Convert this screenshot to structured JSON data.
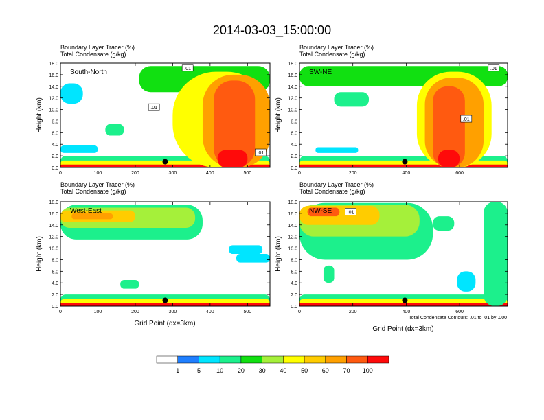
{
  "figure": {
    "main_title": "2014-03-03_15:00:00",
    "header_line1": "Boundary Layer Tracer    (%)",
    "header_line2": "Total Condensate    (g/kg)",
    "ylabel": "Height (km)",
    "xlabel": "Grid Point (dx=3km)",
    "contour_note": "Total Condensate Contours: .01 to .01 by .000",
    "contour_label": ".01"
  },
  "colorbar": {
    "colors": [
      "#ffffff",
      "#1f7fff",
      "#00e5ff",
      "#1cf08c",
      "#11e011",
      "#a5f03a",
      "#ffff00",
      "#ffcc00",
      "#ffa000",
      "#ff5a10",
      "#ff0a0a"
    ],
    "labels": [
      "1",
      "5",
      "10",
      "20",
      "30",
      "40",
      "50",
      "60",
      "70",
      "100"
    ]
  },
  "chart_data": [
    {
      "type": "heatmap",
      "panel": "South-North",
      "title": "South-North",
      "xlim": [
        0,
        560
      ],
      "ylim": [
        0,
        18
      ],
      "x_ticks": [
        0,
        100,
        200,
        300,
        400,
        500
      ],
      "y_ticks": [
        "0.0",
        "2.0",
        "4.0",
        "6.0",
        "8.0",
        "10.0",
        "12.0",
        "14.0",
        "16.0",
        "18.0"
      ],
      "marker": {
        "x": 280,
        "y": 1.0
      },
      "contour_labels": [
        {
          "x": 340,
          "y": 17.2
        },
        {
          "x": 250,
          "y": 10.4
        },
        {
          "x": 535,
          "y": 2.6
        }
      ],
      "regions": [
        {
          "level": 3,
          "x": [
            0,
            560
          ],
          "y": [
            0.0,
            2.0
          ]
        },
        {
          "level": 6,
          "x": [
            0,
            560
          ],
          "y": [
            0.0,
            1.2
          ]
        },
        {
          "level": 10,
          "x": [
            0,
            560
          ],
          "y": [
            0.0,
            0.5
          ]
        },
        {
          "level": 4,
          "x": [
            210,
            560
          ],
          "y": [
            13.0,
            17.5
          ]
        },
        {
          "level": 6,
          "x": [
            300,
            560
          ],
          "y": [
            0.0,
            16.5
          ]
        },
        {
          "level": 8,
          "x": [
            380,
            560
          ],
          "y": [
            0.0,
            16.0
          ]
        },
        {
          "level": 9,
          "x": [
            410,
            520
          ],
          "y": [
            0.0,
            15.0
          ]
        },
        {
          "level": 10,
          "x": [
            420,
            500
          ],
          "y": [
            0.0,
            3.0
          ]
        },
        {
          "level": 2,
          "x": [
            0,
            60
          ],
          "y": [
            11.0,
            14.5
          ]
        },
        {
          "level": 3,
          "x": [
            120,
            170
          ],
          "y": [
            5.5,
            7.5
          ]
        },
        {
          "level": 2,
          "x": [
            0,
            100
          ],
          "y": [
            2.5,
            3.8
          ]
        }
      ]
    },
    {
      "type": "heatmap",
      "panel": "SW-NE",
      "title": "SW-NE",
      "xlim": [
        0,
        780
      ],
      "ylim": [
        0,
        18
      ],
      "x_ticks": [
        0,
        200,
        400,
        600
      ],
      "y_ticks": [
        "0.0",
        "2.0",
        "4.0",
        "6.0",
        "8.0",
        "10.0",
        "12.0",
        "14.0",
        "16.0",
        "18.0"
      ],
      "marker": {
        "x": 395,
        "y": 1.0
      },
      "contour_labels": [
        {
          "x": 728,
          "y": 17.2
        },
        {
          "x": 625,
          "y": 8.4
        }
      ],
      "regions": [
        {
          "level": 3,
          "x": [
            0,
            780
          ],
          "y": [
            0.0,
            2.0
          ]
        },
        {
          "level": 6,
          "x": [
            0,
            780
          ],
          "y": [
            0.0,
            1.2
          ]
        },
        {
          "level": 10,
          "x": [
            0,
            780
          ],
          "y": [
            0.0,
            0.5
          ]
        },
        {
          "level": 4,
          "x": [
            0,
            780
          ],
          "y": [
            14.0,
            17.5
          ]
        },
        {
          "level": 3,
          "x": [
            130,
            260
          ],
          "y": [
            10.5,
            13.0
          ]
        },
        {
          "level": 6,
          "x": [
            440,
            720
          ],
          "y": [
            0.0,
            16.5
          ]
        },
        {
          "level": 8,
          "x": [
            470,
            690
          ],
          "y": [
            0.0,
            15.5
          ]
        },
        {
          "level": 9,
          "x": [
            500,
            620
          ],
          "y": [
            0.0,
            14.0
          ]
        },
        {
          "level": 10,
          "x": [
            520,
            600
          ],
          "y": [
            0.0,
            3.0
          ]
        },
        {
          "level": 2,
          "x": [
            60,
            220
          ],
          "y": [
            2.5,
            3.5
          ]
        }
      ]
    },
    {
      "type": "heatmap",
      "panel": "West-East",
      "title": "West-East",
      "xlim": [
        0,
        560
      ],
      "ylim": [
        0,
        18
      ],
      "x_ticks": [
        0,
        100,
        200,
        300,
        400,
        500
      ],
      "y_ticks": [
        "0.0",
        "2.0",
        "4.0",
        "6.0",
        "8.0",
        "10.0",
        "12.0",
        "14.0",
        "16.0",
        "18.0"
      ],
      "marker": {
        "x": 280,
        "y": 1.0
      },
      "contour_labels": [],
      "regions": [
        {
          "level": 3,
          "x": [
            0,
            560
          ],
          "y": [
            0.0,
            2.0
          ]
        },
        {
          "level": 6,
          "x": [
            0,
            560
          ],
          "y": [
            0.0,
            1.2
          ]
        },
        {
          "level": 10,
          "x": [
            0,
            560
          ],
          "y": [
            0.0,
            0.5
          ]
        },
        {
          "level": 3,
          "x": [
            0,
            380
          ],
          "y": [
            11.5,
            17.5
          ]
        },
        {
          "level": 5,
          "x": [
            0,
            360
          ],
          "y": [
            13.5,
            17.0
          ]
        },
        {
          "level": 7,
          "x": [
            0,
            200
          ],
          "y": [
            14.5,
            16.5
          ]
        },
        {
          "level": 8,
          "x": [
            30,
            140
          ],
          "y": [
            15.0,
            16.0
          ]
        },
        {
          "level": 3,
          "x": [
            160,
            210
          ],
          "y": [
            3.0,
            4.5
          ]
        },
        {
          "level": 2,
          "x": [
            450,
            540
          ],
          "y": [
            9.0,
            10.5
          ]
        },
        {
          "level": 2,
          "x": [
            470,
            560
          ],
          "y": [
            7.5,
            9.0
          ]
        }
      ]
    },
    {
      "type": "heatmap",
      "panel": "NW-SE",
      "title": "NW-SE",
      "xlim": [
        0,
        780
      ],
      "ylim": [
        0,
        18
      ],
      "x_ticks": [
        0,
        200,
        400,
        600
      ],
      "y_ticks": [
        "0.0",
        "2.0",
        "4.0",
        "6.0",
        "8.0",
        "10.0",
        "12.0",
        "14.0",
        "16.0",
        "18.0"
      ],
      "marker": {
        "x": 395,
        "y": 1.0
      },
      "contour_labels": [
        {
          "x": 192,
          "y": 16.3
        }
      ],
      "regions": [
        {
          "level": 3,
          "x": [
            0,
            780
          ],
          "y": [
            0.0,
            2.0
          ]
        },
        {
          "level": 6,
          "x": [
            0,
            780
          ],
          "y": [
            0.0,
            1.2
          ]
        },
        {
          "level": 10,
          "x": [
            0,
            780
          ],
          "y": [
            0.0,
            0.5
          ]
        },
        {
          "level": 3,
          "x": [
            0,
            500
          ],
          "y": [
            8.0,
            17.8
          ]
        },
        {
          "level": 5,
          "x": [
            0,
            450
          ],
          "y": [
            12.0,
            17.5
          ]
        },
        {
          "level": 7,
          "x": [
            0,
            300
          ],
          "y": [
            14.0,
            17.3
          ]
        },
        {
          "level": 9,
          "x": [
            30,
            150
          ],
          "y": [
            15.5,
            17.0
          ]
        },
        {
          "level": 3,
          "x": [
            500,
            580
          ],
          "y": [
            13.0,
            15.5
          ]
        },
        {
          "level": 3,
          "x": [
            690,
            780
          ],
          "y": [
            0.0,
            18.0
          ]
        },
        {
          "level": 3,
          "x": [
            90,
            130
          ],
          "y": [
            4.0,
            7.0
          ]
        },
        {
          "level": 2,
          "x": [
            590,
            660
          ],
          "y": [
            2.5,
            6.0
          ]
        }
      ]
    }
  ]
}
